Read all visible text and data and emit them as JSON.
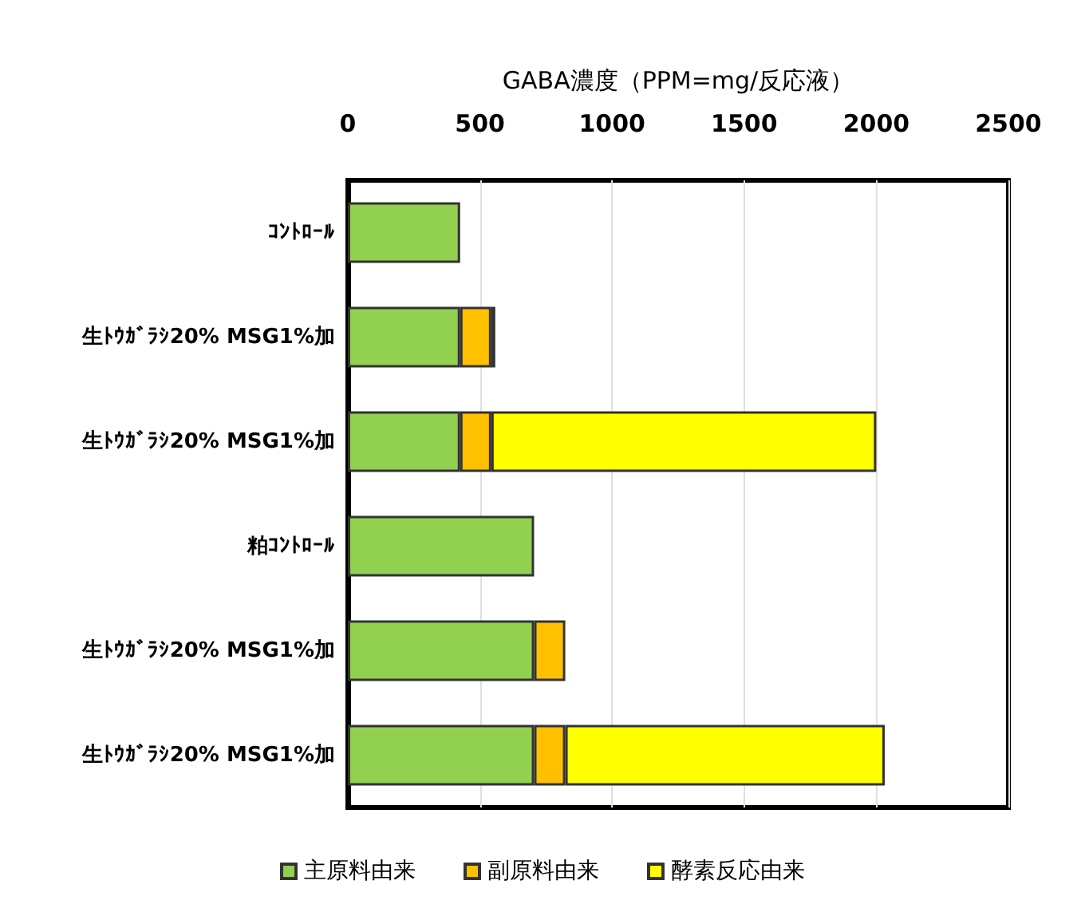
{
  "chart_data": {
    "type": "bar",
    "orientation": "horizontal",
    "stacked": true,
    "xlabel": "GABA濃度（PPM=mg/反応液）",
    "categories": [
      "ｺﾝﾄﾛｰﾙ",
      "生ﾄｳｶﾞﾗｼ20% MSG1%加",
      "生ﾄｳｶﾞﾗｼ20% MSG1%加",
      "粕ｺﾝﾄﾛｰﾙ",
      "生ﾄｳｶﾞﾗｼ20% MSG1%加",
      "生ﾄｳｶﾞﾗｼ20% MSG1%加"
    ],
    "series": [
      {
        "name": "主原料由来",
        "color": "#92d050",
        "values": [
          425,
          425,
          425,
          705,
          705,
          705
        ]
      },
      {
        "name": "副原料由来",
        "color": "#ffc000",
        "values": [
          null,
          118,
          118,
          null,
          118,
          118
        ]
      },
      {
        "name": "酵素反応由来",
        "color": "#ffff00",
        "values": [
          null,
          15,
          1457,
          null,
          null,
          1209
        ]
      }
    ],
    "xlim": [
      0,
      2500
    ],
    "xticks": [
      0,
      500,
      1000,
      1500,
      2000,
      2500
    ],
    "grid": "x",
    "legend": "bottom"
  }
}
